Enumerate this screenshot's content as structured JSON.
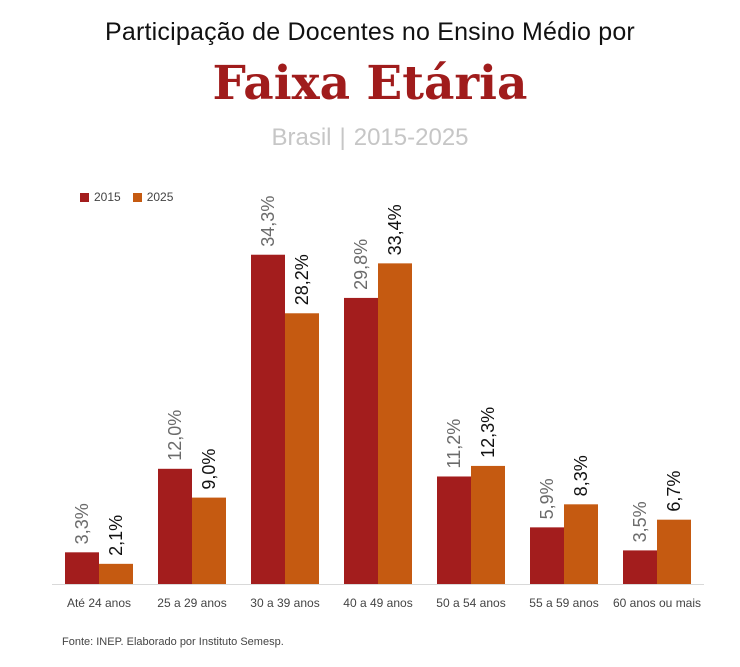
{
  "header": {
    "title_top": "Participação de Docentes no Ensino Médio por",
    "title_main": "Faixa Etária",
    "subtitle_region": "Brasil",
    "subtitle_separator": "|",
    "subtitle_period": "2015-2025"
  },
  "footer": {
    "source": "Fonte: INEP. Elaborado por Instituto Semesp."
  },
  "colors": {
    "series_2015": "#a31d1d",
    "series_2025": "#c55a11",
    "title_accent": "#a01c1c"
  },
  "chart_data": {
    "type": "bar",
    "categories": [
      "Até 24 anos",
      "25 a 29 anos",
      "30 a 39 anos",
      "40 a 49 anos",
      "50 a 54 anos",
      "55 a 59 anos",
      "60 anos ou mais"
    ],
    "series": [
      {
        "name": "2015",
        "values": [
          3.3,
          12.0,
          34.3,
          29.8,
          11.2,
          5.9,
          3.5
        ],
        "labels": [
          "3,3%",
          "12,0%",
          "34,3%",
          "29,8%",
          "11,2%",
          "5,9%",
          "3,5%"
        ]
      },
      {
        "name": "2025",
        "values": [
          2.1,
          9.0,
          28.2,
          33.4,
          12.3,
          8.3,
          6.7
        ],
        "labels": [
          "2,1%",
          "9,0%",
          "28,2%",
          "33,4%",
          "12,3%",
          "8,3%",
          "6,7%"
        ]
      }
    ],
    "legend_position": "top-left",
    "grid": false
  }
}
